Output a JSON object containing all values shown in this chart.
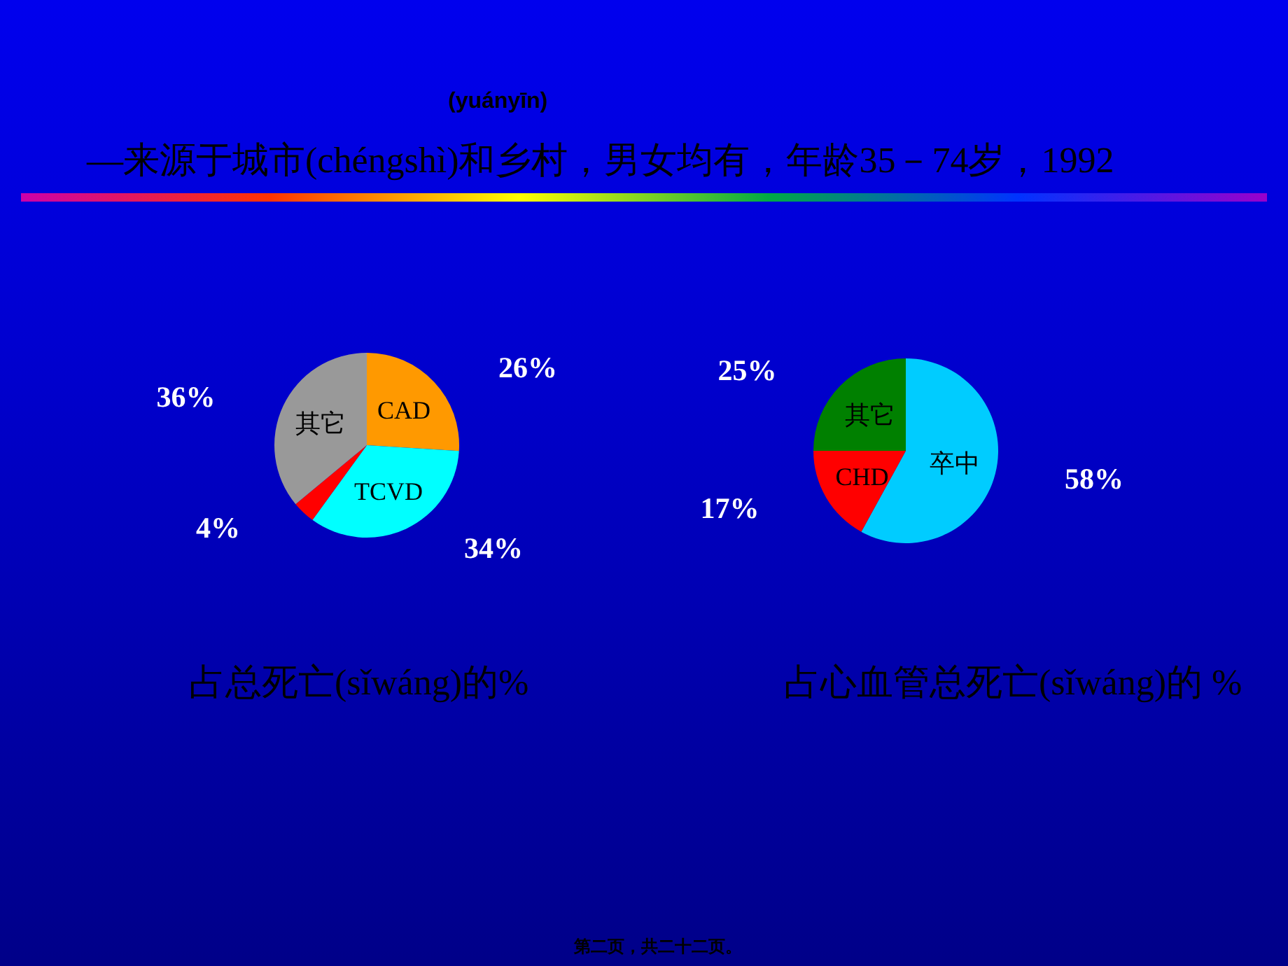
{
  "chart_data": [
    {
      "type": "pie",
      "title": "(yuányīn)",
      "subtitle": "—来源于城市(chéngshì)和乡村，男女均有，年龄35－74岁，1992",
      "categories": [
        "CAD",
        "TCVD",
        null,
        "其它"
      ],
      "values": [
        26,
        34,
        4,
        36
      ],
      "colors": [
        "#ff9900",
        "#00ffff",
        "#ff0000",
        "#999999"
      ],
      "value_labels": [
        "26%",
        "34%",
        "4%",
        "36%"
      ],
      "annotations": [
        "占总死亡(sǐwáng)的%"
      ]
    },
    {
      "type": "pie",
      "categories": [
        "卒中",
        "CHD",
        "其它"
      ],
      "values": [
        58,
        17,
        25
      ],
      "colors": [
        "#00ccff",
        "#ff0000",
        "#008000"
      ],
      "value_labels": [
        "58%",
        "17%",
        "25%"
      ],
      "annotations": [
        "占心血管总死亡(sǐwáng)的 %",
        "第二页，共二十二页。"
      ]
    }
  ]
}
